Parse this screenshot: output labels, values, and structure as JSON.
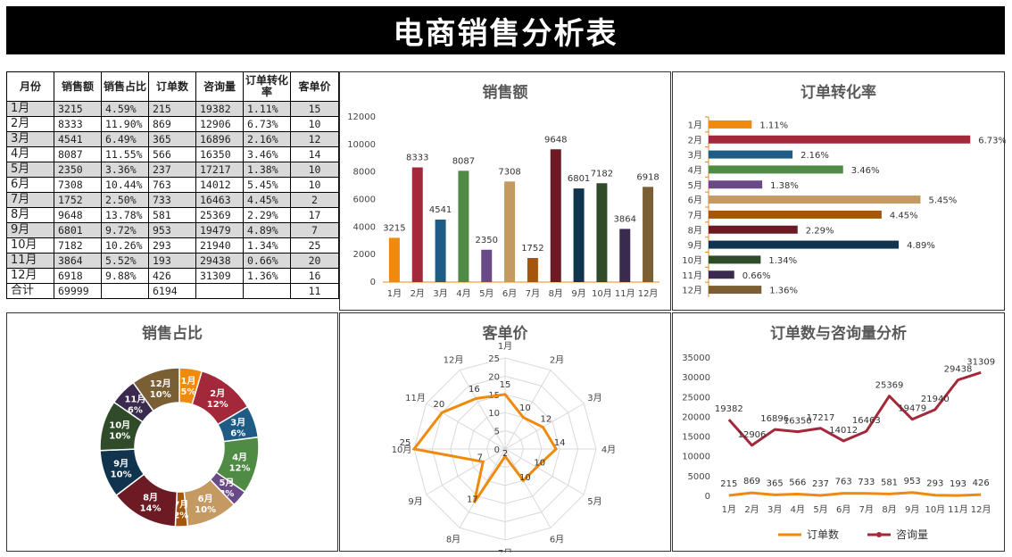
{
  "title": "电商销售分析表",
  "table": {
    "headers": [
      "月份",
      "销售额",
      "销售占比",
      "订单数",
      "咨询量",
      "订单转化率",
      "客单价"
    ],
    "rows": [
      [
        "1月",
        "3215",
        "4.59%",
        "215",
        "19382",
        "1.11%",
        "15"
      ],
      [
        "2月",
        "8333",
        "11.90%",
        "869",
        "12906",
        "6.73%",
        "10"
      ],
      [
        "3月",
        "4541",
        "6.49%",
        "365",
        "16896",
        "2.16%",
        "12"
      ],
      [
        "4月",
        "8087",
        "11.55%",
        "566",
        "16350",
        "3.46%",
        "14"
      ],
      [
        "5月",
        "2350",
        "3.36%",
        "237",
        "17217",
        "1.38%",
        "10"
      ],
      [
        "6月",
        "7308",
        "10.44%",
        "763",
        "14012",
        "5.45%",
        "10"
      ],
      [
        "7月",
        "1752",
        "2.50%",
        "733",
        "16463",
        "4.45%",
        "2"
      ],
      [
        "8月",
        "9648",
        "13.78%",
        "581",
        "25369",
        "2.29%",
        "17"
      ],
      [
        "9月",
        "6801",
        "9.72%",
        "953",
        "19479",
        "4.89%",
        "7"
      ],
      [
        "10月",
        "7182",
        "10.26%",
        "293",
        "21940",
        "1.34%",
        "25"
      ],
      [
        "11月",
        "3864",
        "5.52%",
        "193",
        "29438",
        "0.66%",
        "20"
      ],
      [
        "12月",
        "6918",
        "9.88%",
        "426",
        "31309",
        "1.36%",
        "16"
      ]
    ],
    "total": [
      "合计",
      "69999",
      "",
      "6194",
      "",
      "",
      "11"
    ]
  },
  "colors": [
    "#F08A0E",
    "#A3283A",
    "#1F5C85",
    "#4F8B45",
    "#6A4A86",
    "#C49A62",
    "#A5560E",
    "#6C1A24",
    "#10344D",
    "#2F4B2A",
    "#3A2A4D",
    "#7A5F35"
  ],
  "chart_data": [
    {
      "type": "bar",
      "title": "销售额",
      "categories": [
        "1月",
        "2月",
        "3月",
        "4月",
        "5月",
        "6月",
        "7月",
        "8月",
        "9月",
        "10月",
        "11月",
        "12月"
      ],
      "values": [
        3215,
        8333,
        4541,
        8087,
        2350,
        7308,
        1752,
        9648,
        6801,
        7182,
        3864,
        6918
      ],
      "yticks": [
        "0",
        "2000",
        "4000",
        "6000",
        "8000",
        "10000",
        "12000"
      ],
      "ylim": [
        0,
        12000
      ]
    },
    {
      "type": "bar",
      "orientation": "horizontal",
      "title": "订单转化率",
      "categories": [
        "1月",
        "2月",
        "3月",
        "4月",
        "5月",
        "6月",
        "7月",
        "8月",
        "9月",
        "10月",
        "11月",
        "12月"
      ],
      "values": [
        1.11,
        6.73,
        2.16,
        3.46,
        1.38,
        5.45,
        4.45,
        2.29,
        4.89,
        1.34,
        0.66,
        1.36
      ],
      "labels": [
        "1.11%",
        "6.73%",
        "2.16%",
        "3.46%",
        "1.38%",
        "5.45%",
        "4.45%",
        "2.29%",
        "4.89%",
        "1.34%",
        "0.66%",
        "1.36%"
      ]
    },
    {
      "type": "pie",
      "title": "销售占比",
      "categories": [
        "1月",
        "2月",
        "3月",
        "4月",
        "5月",
        "6月",
        "7月",
        "8月",
        "9月",
        "10月",
        "11月",
        "12月"
      ],
      "values": [
        4.59,
        11.9,
        6.49,
        11.55,
        3.36,
        10.44,
        2.5,
        13.78,
        9.72,
        10.26,
        5.52,
        9.88
      ],
      "labels": [
        "5%",
        "12%",
        "6%",
        "12%",
        "3%",
        "10%",
        "2%",
        "14%",
        "10%",
        "10%",
        "6%",
        "10%"
      ]
    },
    {
      "type": "radar",
      "title": "客单价",
      "categories": [
        "1月",
        "2月",
        "3月",
        "4月",
        "5月",
        "6月",
        "7月",
        "8月",
        "9月",
        "10月",
        "11月",
        "12月"
      ],
      "values": [
        15,
        10,
        12,
        14,
        10,
        10,
        2,
        17,
        7,
        25,
        20,
        16
      ],
      "rticks": [
        "0",
        "5",
        "10",
        "15",
        "20",
        "25"
      ],
      "rmax": 25
    },
    {
      "type": "line",
      "title": "订单数与咨询量分析",
      "categories": [
        "1月",
        "2月",
        "3月",
        "4月",
        "5月",
        "6月",
        "7月",
        "8月",
        "9月",
        "10月",
        "11月",
        "12月"
      ],
      "series": [
        {
          "name": "订单数",
          "color": "#F08A0E",
          "values": [
            215,
            869,
            365,
            566,
            237,
            763,
            733,
            581,
            953,
            293,
            193,
            426
          ]
        },
        {
          "name": "咨询量",
          "color": "#A3283A",
          "values": [
            19382,
            12906,
            16896,
            16350,
            17217,
            14012,
            16463,
            25369,
            19479,
            21940,
            29438,
            31309
          ]
        }
      ],
      "yticks": [
        "0",
        "5000",
        "10000",
        "15000",
        "20000",
        "25000",
        "30000",
        "35000"
      ],
      "ylim": [
        0,
        35000
      ],
      "legend": "bottom"
    }
  ]
}
